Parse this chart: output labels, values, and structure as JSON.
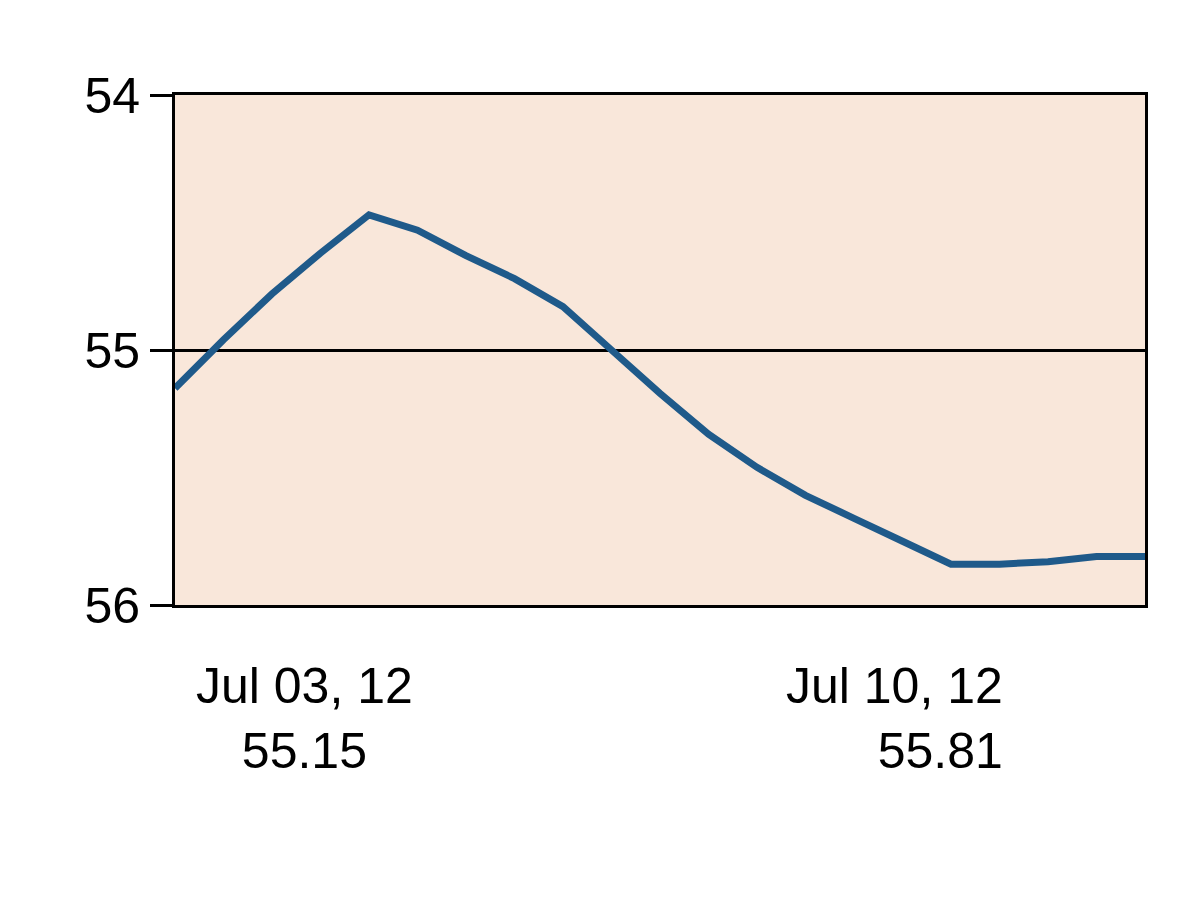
{
  "chart_data": {
    "type": "line",
    "categories": [
      null,
      null,
      null,
      null,
      null,
      null,
      null,
      null,
      null,
      null,
      null,
      null,
      null,
      null,
      null,
      null,
      null,
      null,
      null,
      null,
      null
    ],
    "series": [
      {
        "color": "#1f5a8a",
        "values": [
          55.15,
          54.96,
          54.78,
          54.62,
          54.47,
          54.53,
          54.63,
          54.72,
          54.83,
          55.0,
          55.17,
          55.33,
          55.46,
          55.57,
          55.66,
          55.75,
          55.84,
          55.84,
          55.83,
          55.81,
          55.81
        ]
      }
    ],
    "ylim": [
      56,
      54
    ],
    "yticks": [
      54,
      55,
      56
    ],
    "grid": "y",
    "marker": "none",
    "line_style": "solid",
    "annotations": [
      "Jul 03, 12\n55.15",
      "Jul 10, 12\n55.81"
    ]
  }
}
